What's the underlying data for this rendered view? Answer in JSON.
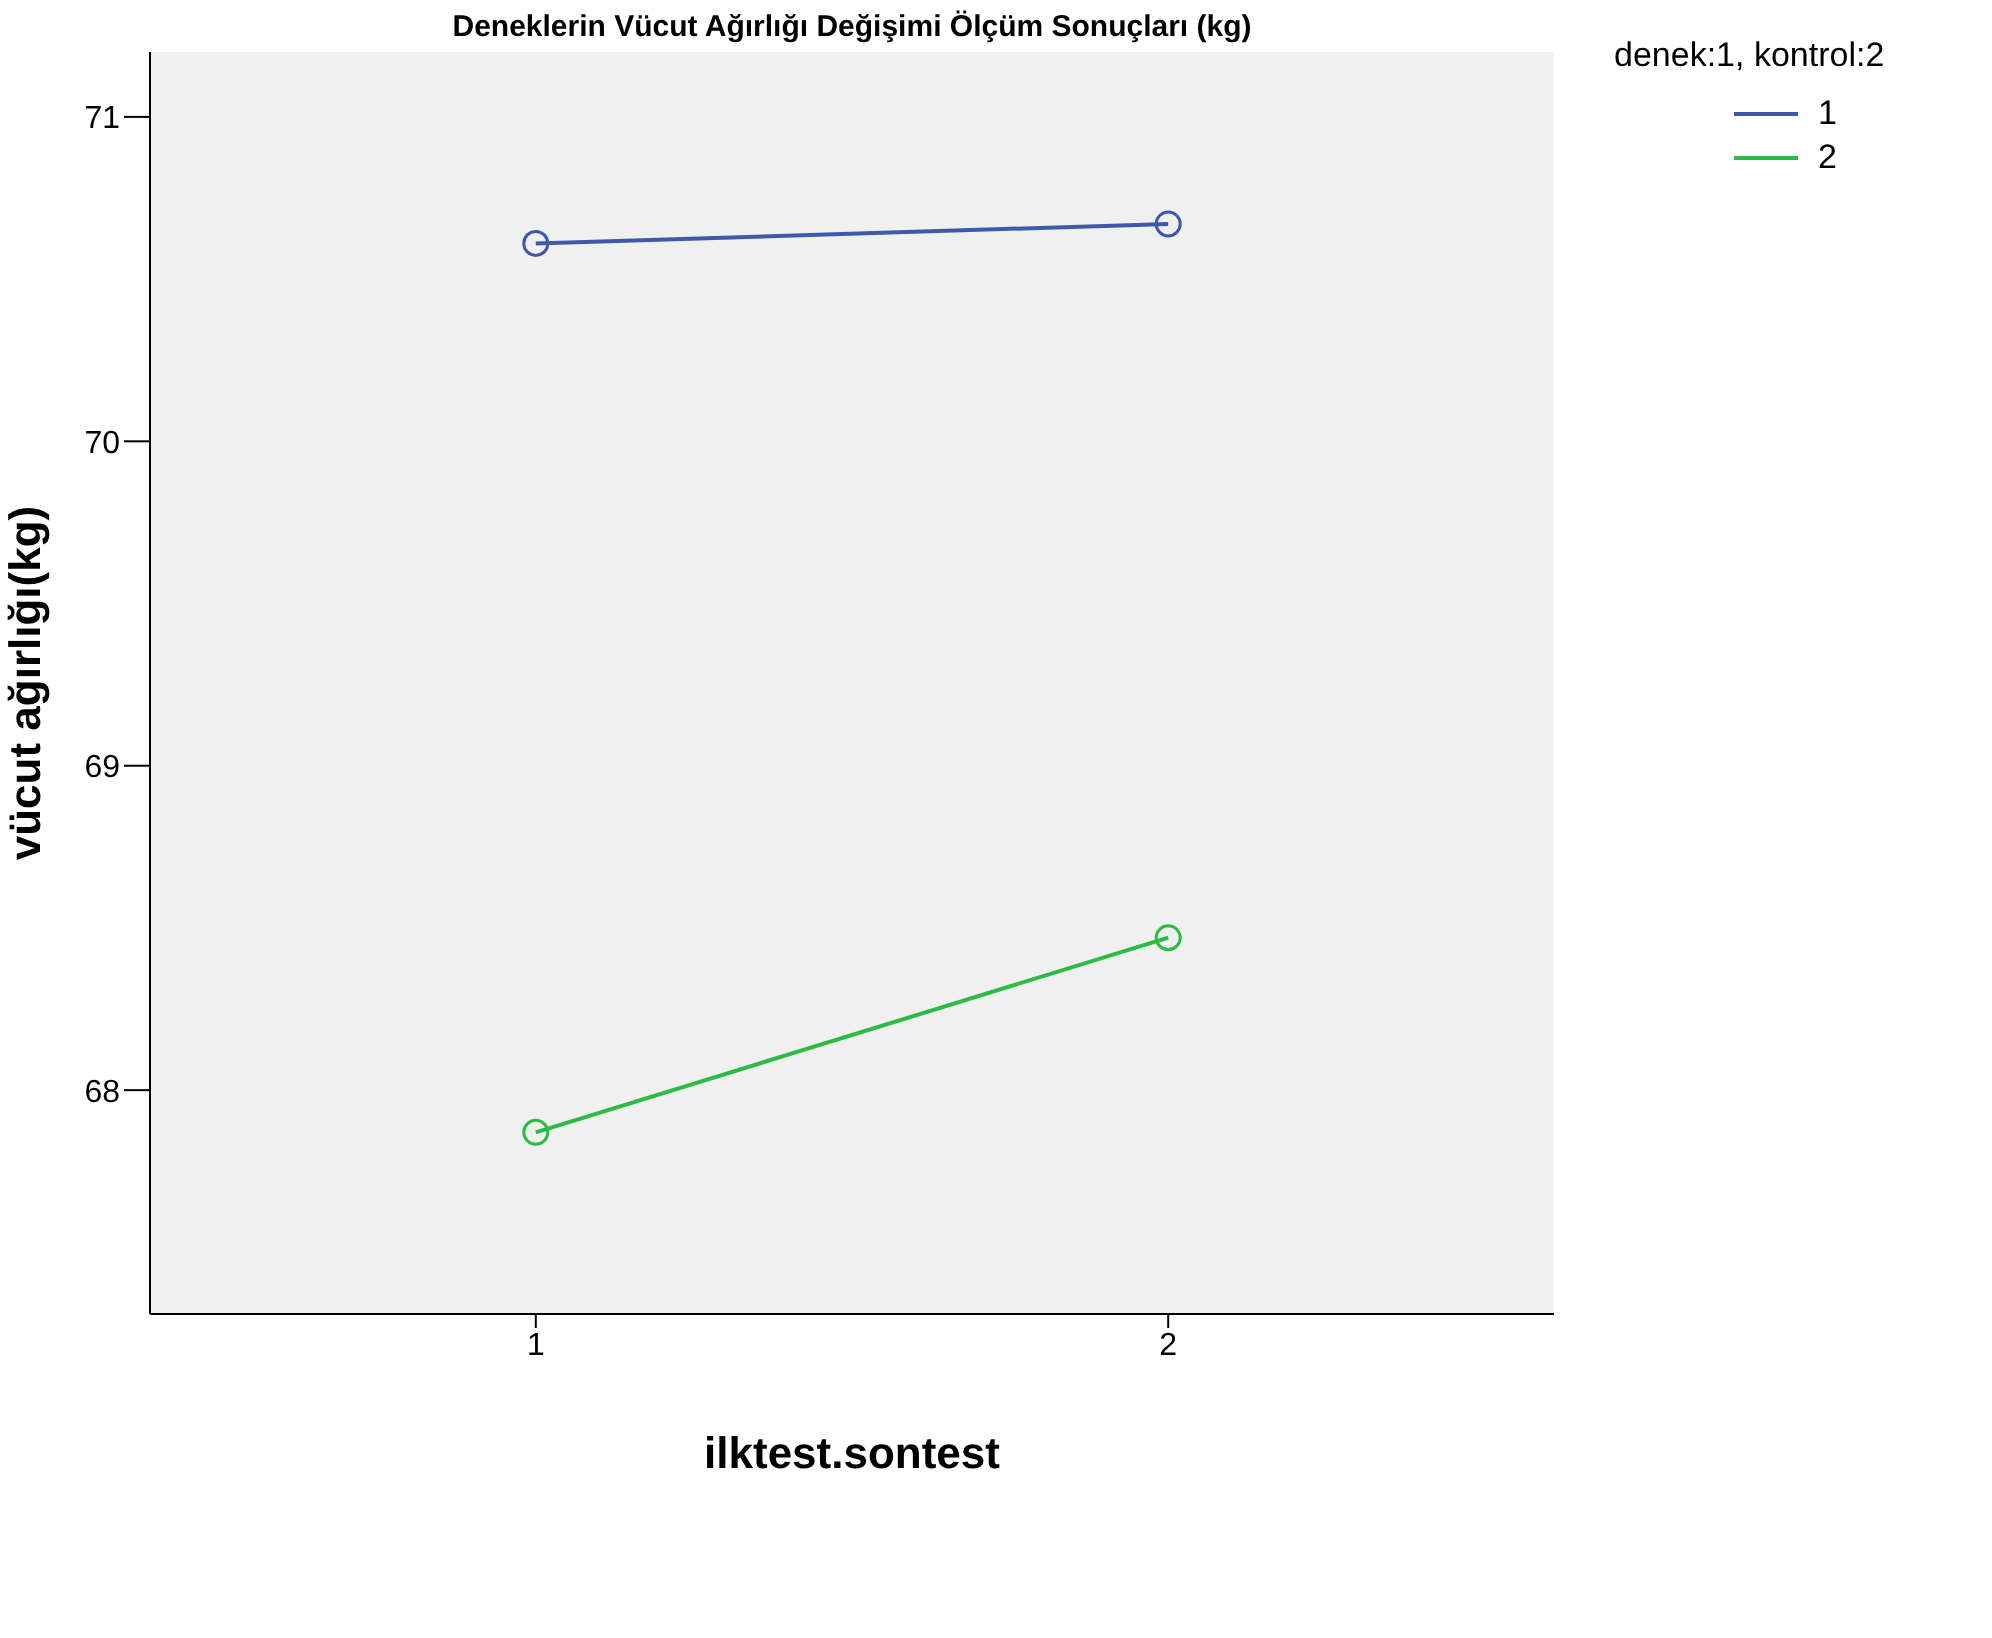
{
  "chart_data": {
    "type": "line",
    "title": "Deneklerin Vücut Ağırlığı Değişimi Ölçüm Sonuçları (kg)",
    "xlabel": "ilktest.sontest",
    "ylabel": "vücut ağırlığı(kg)",
    "legend_title": "denek:1, kontrol:2",
    "x": [
      1,
      2
    ],
    "series": [
      {
        "name": "1",
        "color": "#3e58ac",
        "values": [
          70.61,
          70.67
        ]
      },
      {
        "name": "2",
        "color": "#2dbb44",
        "values": [
          67.87,
          68.47
        ]
      }
    ],
    "xlim": [
      0.39,
      2.61
    ],
    "xticks": [
      1,
      2
    ],
    "ylim": [
      67.31,
      71.2
    ],
    "yticks": [
      68,
      69,
      70,
      71
    ],
    "legend": "top right",
    "marker": "circle",
    "line_style": "solid"
  }
}
